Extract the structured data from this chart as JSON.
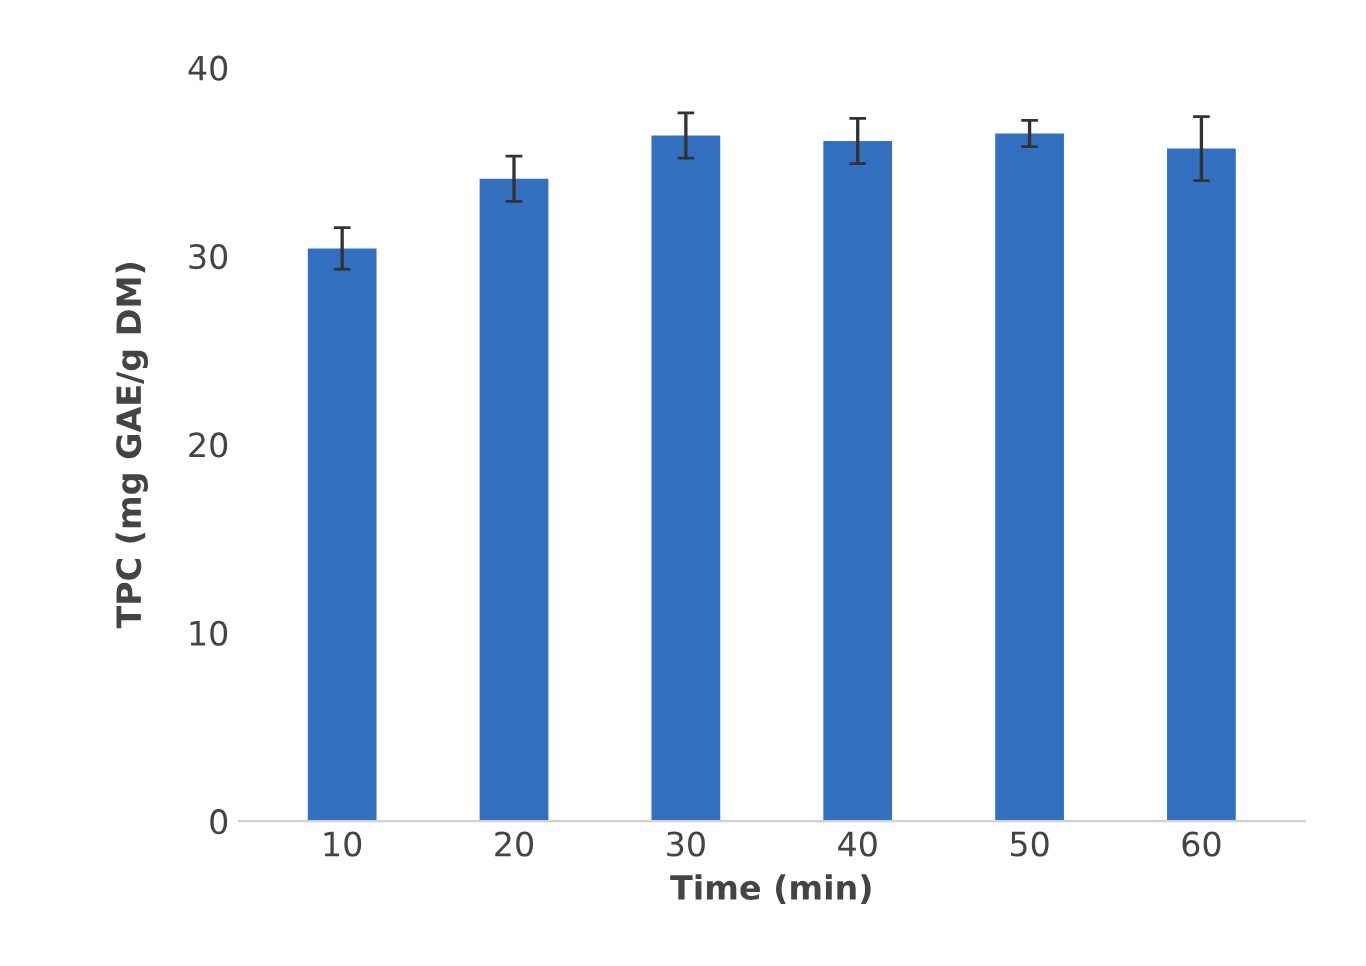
{
  "chart_data": {
    "type": "bar",
    "xlabel": "Time (min)",
    "ylabel": "TPC (mg GAE/g DM)",
    "categories": [
      "10",
      "20",
      "30",
      "40",
      "50",
      "60"
    ],
    "values": [
      30.4,
      34.1,
      36.4,
      36.1,
      36.5,
      35.7
    ],
    "errors": [
      1.1,
      1.2,
      1.2,
      1.2,
      0.7,
      1.7
    ],
    "color": "#3370c0",
    "ylim": [
      0,
      40
    ],
    "yticks": [
      0,
      10,
      20,
      30,
      40
    ],
    "grid": false
  }
}
